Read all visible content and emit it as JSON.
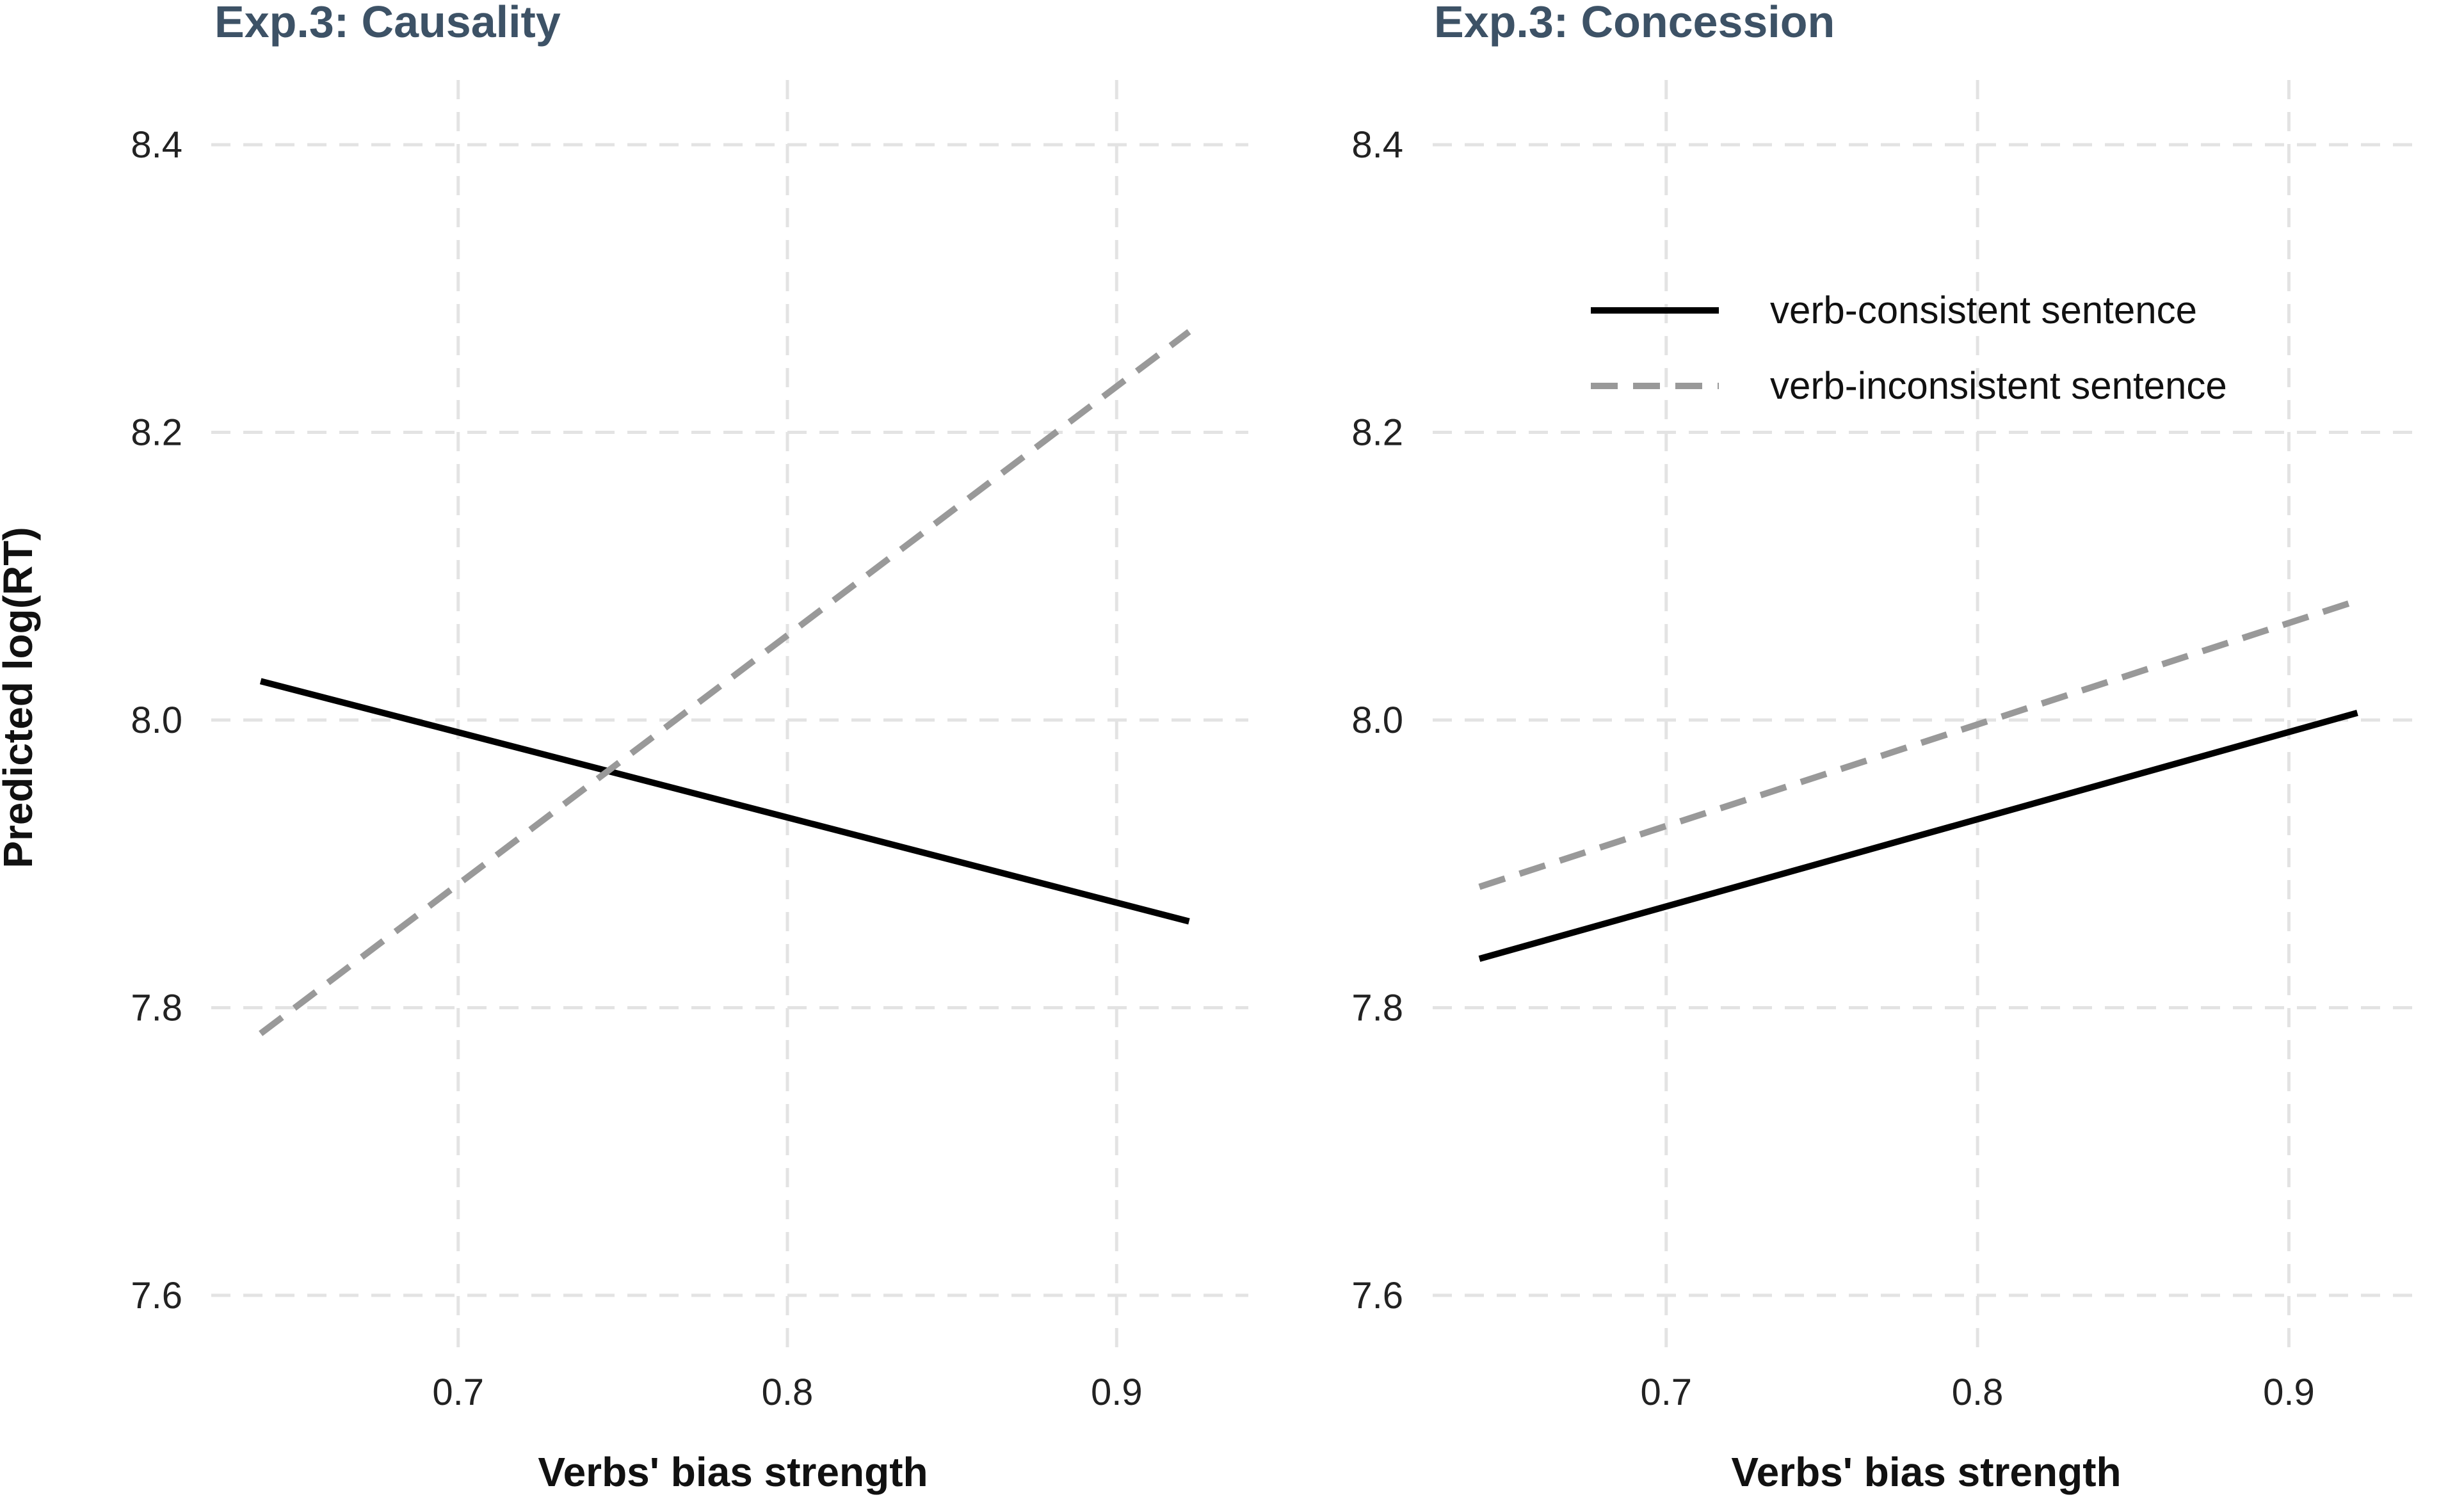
{
  "chart_data": [
    {
      "type": "line",
      "title": "Exp.3: Causality",
      "xlabel": "Verbs' bias strength",
      "ylabel": "Predicted log(RT)",
      "xlim": [
        0.625,
        0.94
      ],
      "ylim": [
        7.555,
        8.445
      ],
      "x_ticks": [
        0.7,
        0.8,
        0.9
      ],
      "x_tick_labels": [
        "0.7",
        "0.8",
        "0.9"
      ],
      "y_ticks": [
        7.6,
        7.8,
        8.0,
        8.2,
        8.4
      ],
      "y_tick_labels": [
        "7.6",
        "7.8",
        "8.0",
        "8.2",
        "8.4"
      ],
      "grid": true,
      "series": [
        {
          "name": "verb-consistent sentence",
          "style": "solid",
          "color": "#000000",
          "x": [
            0.64,
            0.922
          ],
          "y": [
            8.027,
            7.86
          ]
        },
        {
          "name": "verb-inconsistent sentence",
          "style": "dashed",
          "color": "#999999",
          "x": [
            0.64,
            0.922
          ],
          "y": [
            7.782,
            8.27
          ]
        }
      ]
    },
    {
      "type": "line",
      "title": "Exp.3: Concession",
      "xlabel": "Verbs' bias strength",
      "ylabel": "",
      "xlim": [
        0.625,
        0.94
      ],
      "ylim": [
        7.555,
        8.445
      ],
      "x_ticks": [
        0.7,
        0.8,
        0.9
      ],
      "x_tick_labels": [
        "0.7",
        "0.8",
        "0.9"
      ],
      "y_ticks": [
        7.6,
        7.8,
        8.0,
        8.2,
        8.4
      ],
      "y_tick_labels": [
        "7.6",
        "7.8",
        "8.0",
        "8.2",
        "8.4"
      ],
      "grid": true,
      "legend_position": "top-right",
      "series": [
        {
          "name": "verb-consistent sentence",
          "style": "solid",
          "color": "#000000",
          "x": [
            0.64,
            0.922
          ],
          "y": [
            7.834,
            8.005
          ]
        },
        {
          "name": "verb-inconsistent sentence",
          "style": "dashed",
          "color": "#999999",
          "x": [
            0.64,
            0.922
          ],
          "y": [
            7.884,
            8.083
          ]
        }
      ]
    }
  ],
  "legend": {
    "items": [
      {
        "label": "verb-consistent sentence",
        "style": "solid",
        "color": "#000000"
      },
      {
        "label": "verb-inconsistent sentence",
        "style": "dashed",
        "color": "#999999"
      }
    ]
  }
}
